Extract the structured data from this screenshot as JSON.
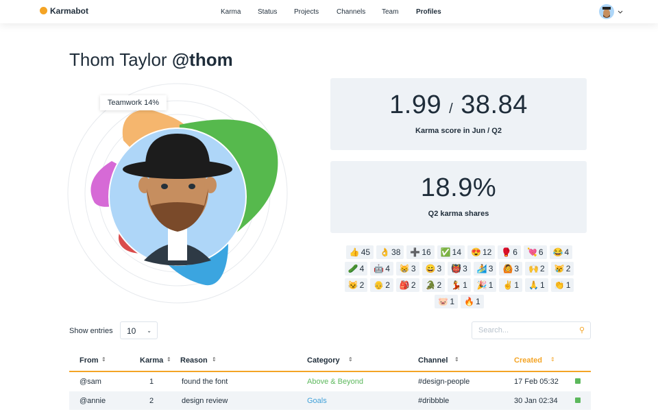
{
  "nav": {
    "brand": "Karmabot",
    "links": [
      "Karma",
      "Status",
      "Projects",
      "Channels",
      "Team",
      "Profiles"
    ]
  },
  "profile": {
    "name": "Thom Taylor",
    "handle": "@thom",
    "tooltip": "Teamwork 14%"
  },
  "stats": [
    {
      "value": "1.99",
      "separator": "/",
      "value2": "38.84",
      "label": "Karma score in Jun / Q2"
    },
    {
      "value": "18.9%",
      "label": "Q2 karma shares"
    }
  ],
  "reactions": [
    {
      "emoji": "👍",
      "count": 45
    },
    {
      "emoji": "👌",
      "count": 38
    },
    {
      "emoji": "➕",
      "count": 16
    },
    {
      "emoji": "✅",
      "count": 14
    },
    {
      "emoji": "😍",
      "count": 12
    },
    {
      "emoji": "🥊",
      "count": 6
    },
    {
      "emoji": "💘",
      "count": 6
    },
    {
      "emoji": "😂",
      "count": 4
    },
    {
      "emoji": "🥒",
      "count": 4
    },
    {
      "emoji": "🤖",
      "count": 4
    },
    {
      "emoji": "😸",
      "count": 3
    },
    {
      "emoji": "😄",
      "count": 3
    },
    {
      "emoji": "👹",
      "count": 3
    },
    {
      "emoji": "🏄",
      "count": 3
    },
    {
      "emoji": "🙆",
      "count": 3
    },
    {
      "emoji": "🙌",
      "count": 2
    },
    {
      "emoji": "😿",
      "count": 2
    },
    {
      "emoji": "😼",
      "count": 2
    },
    {
      "emoji": "👴",
      "count": 2
    },
    {
      "emoji": "🎒",
      "count": 2
    },
    {
      "emoji": "🐊",
      "count": 2
    },
    {
      "emoji": "💃",
      "count": 1
    },
    {
      "emoji": "🎉",
      "count": 1
    },
    {
      "emoji": "✌",
      "count": 1
    },
    {
      "emoji": "🙏",
      "count": 1
    },
    {
      "emoji": "👏",
      "count": 1
    },
    {
      "emoji": "🐷",
      "count": 1
    },
    {
      "emoji": "🔥",
      "count": 1
    }
  ],
  "table": {
    "show_entries": "Show entries",
    "page_size": "10",
    "search_placeholder": "Search...",
    "columns": [
      "From",
      "Karma",
      "Reason",
      "Category",
      "Channel",
      "Created"
    ],
    "rows": [
      [
        "@sam",
        1,
        "found the font",
        "Above & Beyond",
        "#design-people",
        "17 Feb 05:32"
      ],
      [
        "@annie",
        2,
        "design review",
        "Goals",
        "#dribbble",
        "30 Jan 02:34"
      ]
    ]
  }
}
